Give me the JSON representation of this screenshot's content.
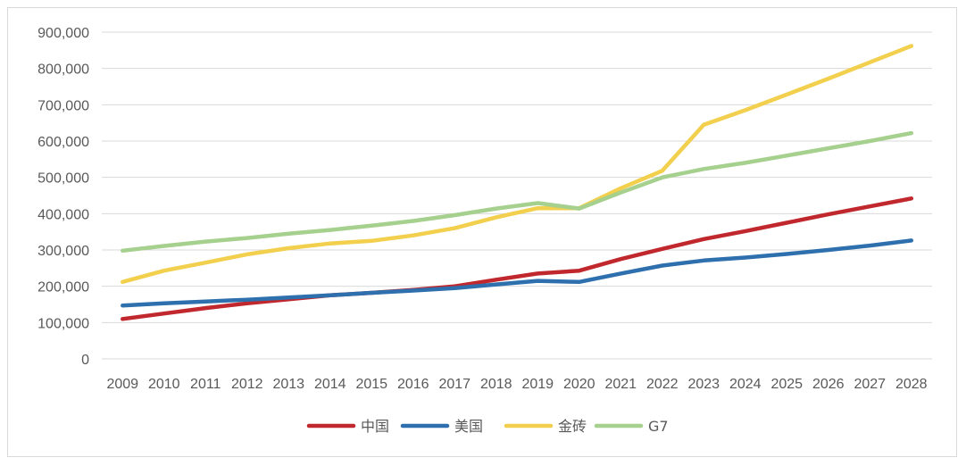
{
  "chart_data": {
    "type": "line",
    "title": "",
    "xlabel": "",
    "ylabel": "",
    "categories": [
      "2009",
      "2010",
      "2011",
      "2012",
      "2013",
      "2014",
      "2015",
      "2016",
      "2017",
      "2018",
      "2019",
      "2020",
      "2021",
      "2022",
      "2023",
      "2024",
      "2025",
      "2026",
      "2027",
      "2028"
    ],
    "ylim": [
      0,
      900000
    ],
    "y_ticks": [
      0,
      100000,
      200000,
      300000,
      400000,
      500000,
      600000,
      700000,
      800000,
      900000
    ],
    "y_tick_labels": [
      "0",
      "100,000",
      "200,000",
      "300,000",
      "400,000",
      "500,000",
      "600,000",
      "700,000",
      "800,000",
      "900,000"
    ],
    "grid": true,
    "legend_position": "bottom",
    "series": [
      {
        "name": "中国",
        "color": "#c0282d",
        "values": [
          110000,
          125000,
          140000,
          153000,
          164000,
          175000,
          182000,
          190000,
          200000,
          218000,
          235000,
          243000,
          275000,
          303000,
          330000,
          352000,
          375000,
          398000,
          420000,
          442000
        ]
      },
      {
        "name": "美国",
        "color": "#2e6fad",
        "values": [
          147000,
          153000,
          158000,
          163000,
          169000,
          175000,
          182000,
          188000,
          195000,
          205000,
          215000,
          212000,
          235000,
          257000,
          271000,
          279000,
          289000,
          300000,
          312000,
          326000
        ]
      },
      {
        "name": "金砖",
        "color": "#f2cf4d",
        "values": [
          212000,
          243000,
          265000,
          288000,
          305000,
          318000,
          325000,
          340000,
          360000,
          390000,
          415000,
          415000,
          470000,
          518000,
          645000,
          685000,
          728000,
          772000,
          817000,
          862000
        ]
      },
      {
        "name": "G7",
        "color": "#a5d08d",
        "values": [
          298000,
          311000,
          323000,
          333000,
          345000,
          355000,
          367000,
          380000,
          396000,
          414000,
          429000,
          414000,
          458000,
          500000,
          523000,
          540000,
          560000,
          580000,
          600000,
          622000
        ]
      }
    ]
  }
}
